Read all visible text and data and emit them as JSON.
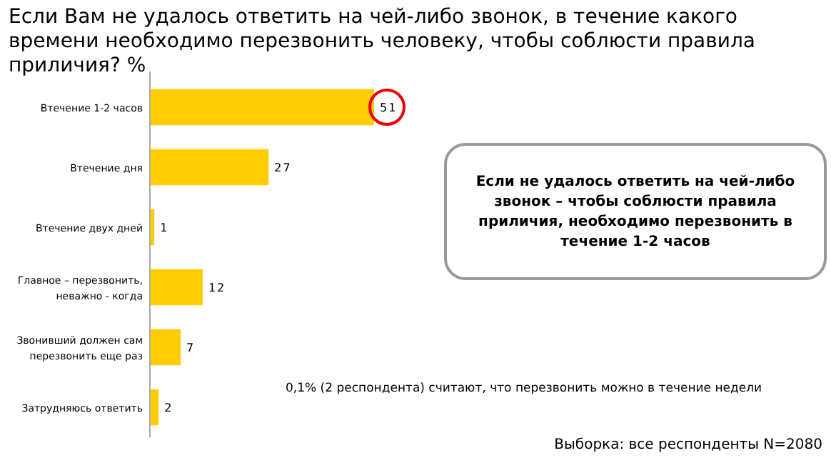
{
  "chart_data": {
    "type": "bar",
    "orientation": "horizontal",
    "title": "Если Вам не удалось ответить на чей-либо звонок, в течение какого времени необходимо перезвонить человеку, чтобы соблюсти правила приличия? %",
    "categories": [
      "Втечение 1-2 часов",
      "Втечение дня",
      "Втечение двух дней",
      "Главное – перезвонить, неважно - когда",
      "Звонивший должен сам перезвонить еще раз",
      "Затрудняюсь ответить"
    ],
    "values": [
      51,
      27,
      1,
      12,
      7,
      2
    ],
    "color": "#ffcc00",
    "tick_labels": "y",
    "data_labels": true,
    "annotations": [
      "Если не удалось ответить на чей-либо звонок – чтобы соблюсти правила приличия, необходимо перезвонить в течение 1-2 часов",
      "0,1% (2 респондента) считают, что перезвонить можно в течение недели",
      "Выборка: все респонденты N=2080"
    ]
  }
}
